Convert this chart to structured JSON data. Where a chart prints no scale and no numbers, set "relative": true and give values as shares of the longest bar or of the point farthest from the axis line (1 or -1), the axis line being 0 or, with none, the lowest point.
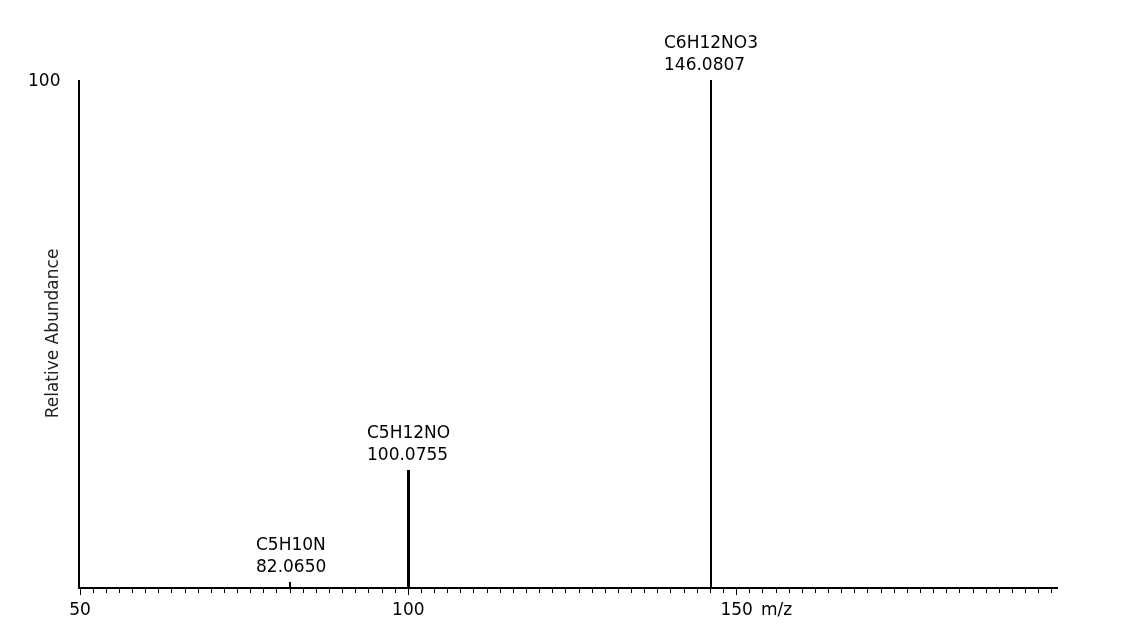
{
  "chart_data": {
    "type": "bar",
    "relative": true,
    "x": [
      82.065,
      100.0755,
      146.0807
    ],
    "values": [
      0.01,
      0.23,
      1
    ],
    "color": "#000000",
    "xlim": [
      50,
      199
    ],
    "xticks": [
      50,
      100,
      150
    ],
    "xlabel": "m/z",
    "ylabel": "Relative Abundance",
    "annotations": [
      "100",
      {
        "text": "C5H10N\n82.0650",
        "x": 82.065,
        "y": 0.01
      },
      {
        "text": "C5H12NO\n100.0755",
        "x": 100.0755,
        "y": 0.23
      },
      {
        "text": "C6H12NO3\n146.0807",
        "x": 146.0807,
        "y": 1
      }
    ]
  }
}
